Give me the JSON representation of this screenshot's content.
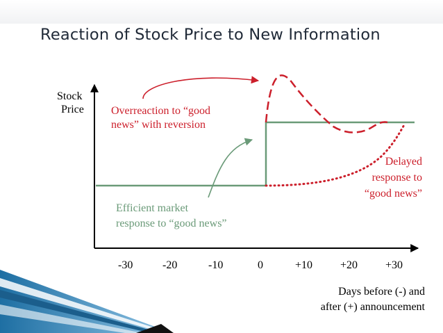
{
  "title": "Reaction of Stock Price to New Information",
  "axes": {
    "y_label_line1": "Stock",
    "y_label_line2": "Price",
    "x_ticks": [
      "-30",
      "-20",
      "-10",
      "0",
      "+10",
      "+20",
      "+30"
    ],
    "x_label_line1": "Days before (-) and",
    "x_label_line2": "after (+) announcement"
  },
  "annotations": {
    "overreaction_line1": "Overreaction to “good",
    "overreaction_line2": "news” with reversion",
    "efficient_line1": "Efficient market",
    "efficient_line2": "response to “good news”",
    "delayed_line1": "Delayed",
    "delayed_line2": "response to",
    "delayed_line3": "“good news”"
  },
  "colors": {
    "efficient": "#6a9a78",
    "overreaction": "#cc1f2b",
    "delayed": "#cc1f2b",
    "axis": "#000000",
    "accent": "#2f7fae"
  }
}
